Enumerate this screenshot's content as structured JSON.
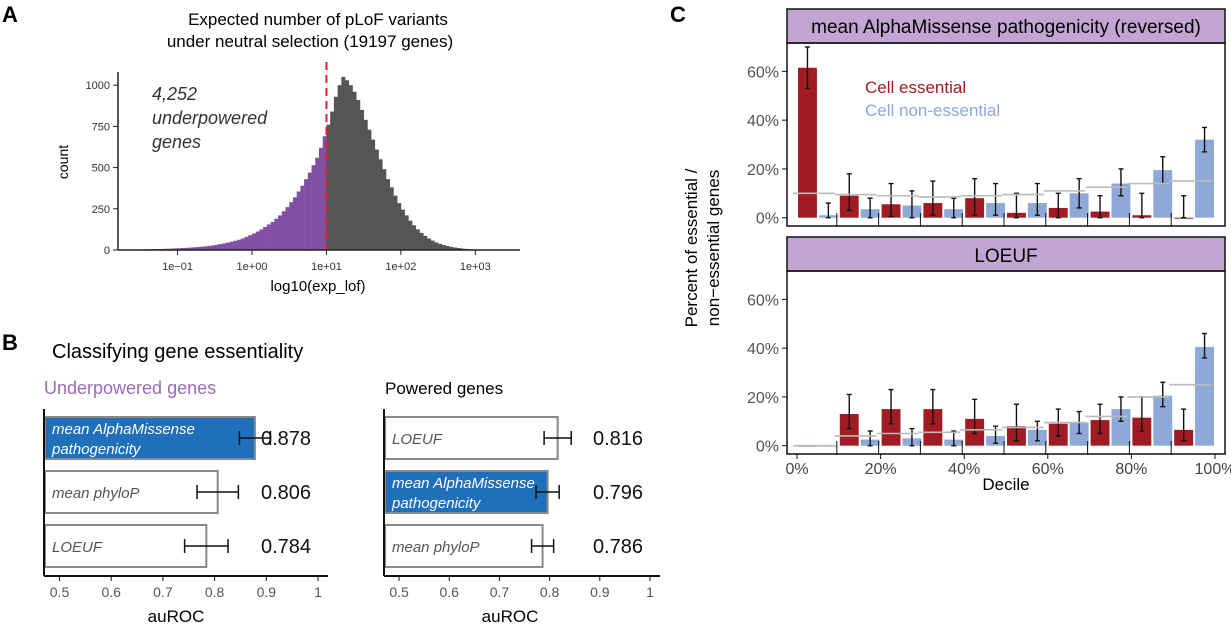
{
  "panels": {
    "A": {
      "letter": "A",
      "title_line1": "Expected number of pLoF variants",
      "title_line2": "under neutral selection (19197 genes)",
      "annotation": [
        "4,252",
        "underpowered",
        "genes"
      ],
      "ylabel": "count",
      "xlabel": "log10(exp_lof)",
      "threshold_color": "#e8232b",
      "color_underpowered": "#8150a3",
      "color_powered": "#555555"
    },
    "B": {
      "letter": "B",
      "title": "Classifying gene essentiality",
      "xlabel": "auROC",
      "left_subtitle": "Underpowered genes",
      "right_subtitle": "Powered genes",
      "subtitle_color_left": "#9b6bb5",
      "highlight_color": "#1f6fba"
    },
    "C": {
      "letter": "C",
      "facet1": "mean AlphaMissense pathogenicity (reversed)",
      "facet2": "LOEUF",
      "ylabel_line1": "Percent of essential /",
      "ylabel_line2": "non−essential genes",
      "xlabel": "Decile",
      "legend": [
        "Cell essential",
        "Cell non-essential"
      ],
      "color_essential": "#a01c22",
      "color_nonessential": "#8ea8d8",
      "strip_color": "#c3a5d3"
    }
  },
  "chart_data": [
    {
      "type": "bar",
      "title": "Expected number of pLoF variants under neutral selection (19197 genes)",
      "xlabel": "log10(exp_lof)",
      "ylabel": "count",
      "x_scale": "log10",
      "x_ticks": [
        "1e−01",
        "1e+00",
        "1e+01",
        "1e+02",
        "1e+03"
      ],
      "y_ticks": [
        "0",
        "250",
        "500",
        "750",
        "1000"
      ],
      "ylim": [
        0,
        1080
      ],
      "threshold": 10,
      "bin_start_log10": -1.8,
      "bin_width_log10": 0.05,
      "counts": [
        2,
        2,
        2,
        3,
        3,
        3,
        4,
        4,
        5,
        5,
        6,
        6,
        7,
        8,
        9,
        10,
        11,
        12,
        13,
        15,
        16,
        18,
        20,
        22,
        25,
        28,
        32,
        36,
        40,
        45,
        50,
        56,
        62,
        70,
        80,
        90,
        100,
        112,
        125,
        140,
        155,
        170,
        190,
        210,
        235,
        260,
        290,
        320,
        355,
        390,
        430,
        470,
        515,
        560,
        620,
        690,
        760,
        840,
        930,
        1000,
        1050,
        1030,
        1000,
        960,
        910,
        850,
        790,
        730,
        670,
        610,
        550,
        490,
        430,
        380,
        330,
        285,
        245,
        210,
        178,
        150,
        125,
        104,
        86,
        70,
        57,
        46,
        37,
        30,
        24,
        19,
        15,
        12,
        9,
        7,
        5,
        4,
        3,
        2,
        2,
        1
      ]
    },
    {
      "type": "bar",
      "title": "Underpowered genes",
      "xlabel": "auROC",
      "xlim": [
        0.47,
        1
      ],
      "x_ticks": [
        "0.5",
        "0.6",
        "0.7",
        "0.8",
        "0.9",
        "1"
      ],
      "categories": [
        "mean AlphaMissense pathogenicity",
        "mean phyloP",
        "LOEUF"
      ],
      "values": [
        0.878,
        0.806,
        0.784
      ],
      "value_labels": [
        "0.878",
        "0.806",
        "0.784"
      ],
      "errors": [
        0.03,
        0.04,
        0.042
      ],
      "highlight": [
        true,
        false,
        false
      ]
    },
    {
      "type": "bar",
      "title": "Powered genes",
      "xlabel": "auROC",
      "xlim": [
        0.47,
        1
      ],
      "x_ticks": [
        "0.5",
        "0.6",
        "0.7",
        "0.8",
        "0.9",
        "1"
      ],
      "categories": [
        "LOEUF",
        "mean AlphaMissense pathogenicity",
        "mean phyloP"
      ],
      "values": [
        0.816,
        0.796,
        0.786
      ],
      "value_labels": [
        "0.816",
        "0.796",
        "0.786"
      ],
      "errors": [
        0.027,
        0.023,
        0.022
      ],
      "highlight": [
        false,
        true,
        false
      ]
    },
    {
      "type": "bar",
      "title": "mean AlphaMissense pathogenicity (reversed)",
      "xlabel": "Decile",
      "ylabel": "Percent of essential / non−essential genes",
      "ylim": [
        0,
        70
      ],
      "y_ticks": [
        "0%",
        "20%",
        "40%",
        "60%"
      ],
      "x_ticks": [
        "0%",
        "20%",
        "40%",
        "60%",
        "80%",
        "100%"
      ],
      "series": [
        {
          "name": "Cell essential",
          "values": [
            61.5,
            9,
            5.5,
            6,
            8,
            2,
            4,
            2.5,
            1,
            0
          ],
          "err_lo": [
            53,
            3,
            0.5,
            1,
            1,
            0,
            0,
            0,
            0,
            0
          ],
          "err_hi": [
            70,
            18,
            14,
            15,
            16,
            10,
            10,
            9,
            10,
            9
          ]
        },
        {
          "name": "Cell non-essential",
          "values": [
            1,
            3.5,
            5,
            3.5,
            6,
            6,
            10,
            14,
            19.5,
            32
          ],
          "err_lo": [
            0,
            0,
            0,
            0,
            1,
            1,
            4,
            9,
            14,
            27
          ],
          "err_hi": [
            6,
            8,
            11,
            8,
            14,
            14,
            16,
            20,
            25,
            37
          ]
        }
      ],
      "baseline": [
        10,
        9.5,
        9,
        8.5,
        9,
        9.5,
        11,
        12.5,
        14,
        15
      ]
    },
    {
      "type": "bar",
      "title": "LOEUF",
      "xlabel": "Decile",
      "ylabel": "Percent of essential / non−essential genes",
      "ylim": [
        0,
        70
      ],
      "y_ticks": [
        "0%",
        "20%",
        "40%",
        "60%"
      ],
      "x_ticks": [
        "0%",
        "20%",
        "40%",
        "60%",
        "80%",
        "100%"
      ],
      "series": [
        {
          "name": "Cell essential",
          "values": [
            0,
            13,
            15,
            15,
            11,
            8,
            9,
            10.5,
            11.5,
            6.5
          ],
          "err_lo": [
            0,
            7,
            9,
            9,
            5,
            2,
            4,
            5,
            6,
            2
          ],
          "err_hi": [
            0,
            21,
            23,
            23,
            19,
            17,
            15,
            17,
            20,
            15
          ]
        },
        {
          "name": "Cell non-essential",
          "values": [
            0,
            2.5,
            3,
            2.5,
            4,
            6.5,
            9.5,
            15,
            20.5,
            40.5
          ],
          "err_lo": [
            0,
            0,
            0,
            0,
            1,
            2,
            5,
            10,
            16,
            36
          ],
          "err_hi": [
            0,
            6,
            7,
            6,
            8,
            10,
            14,
            20,
            26,
            46
          ]
        }
      ],
      "baseline": [
        0,
        4,
        5,
        5.5,
        6.5,
        7.5,
        9.5,
        12,
        20,
        25
      ]
    }
  ]
}
